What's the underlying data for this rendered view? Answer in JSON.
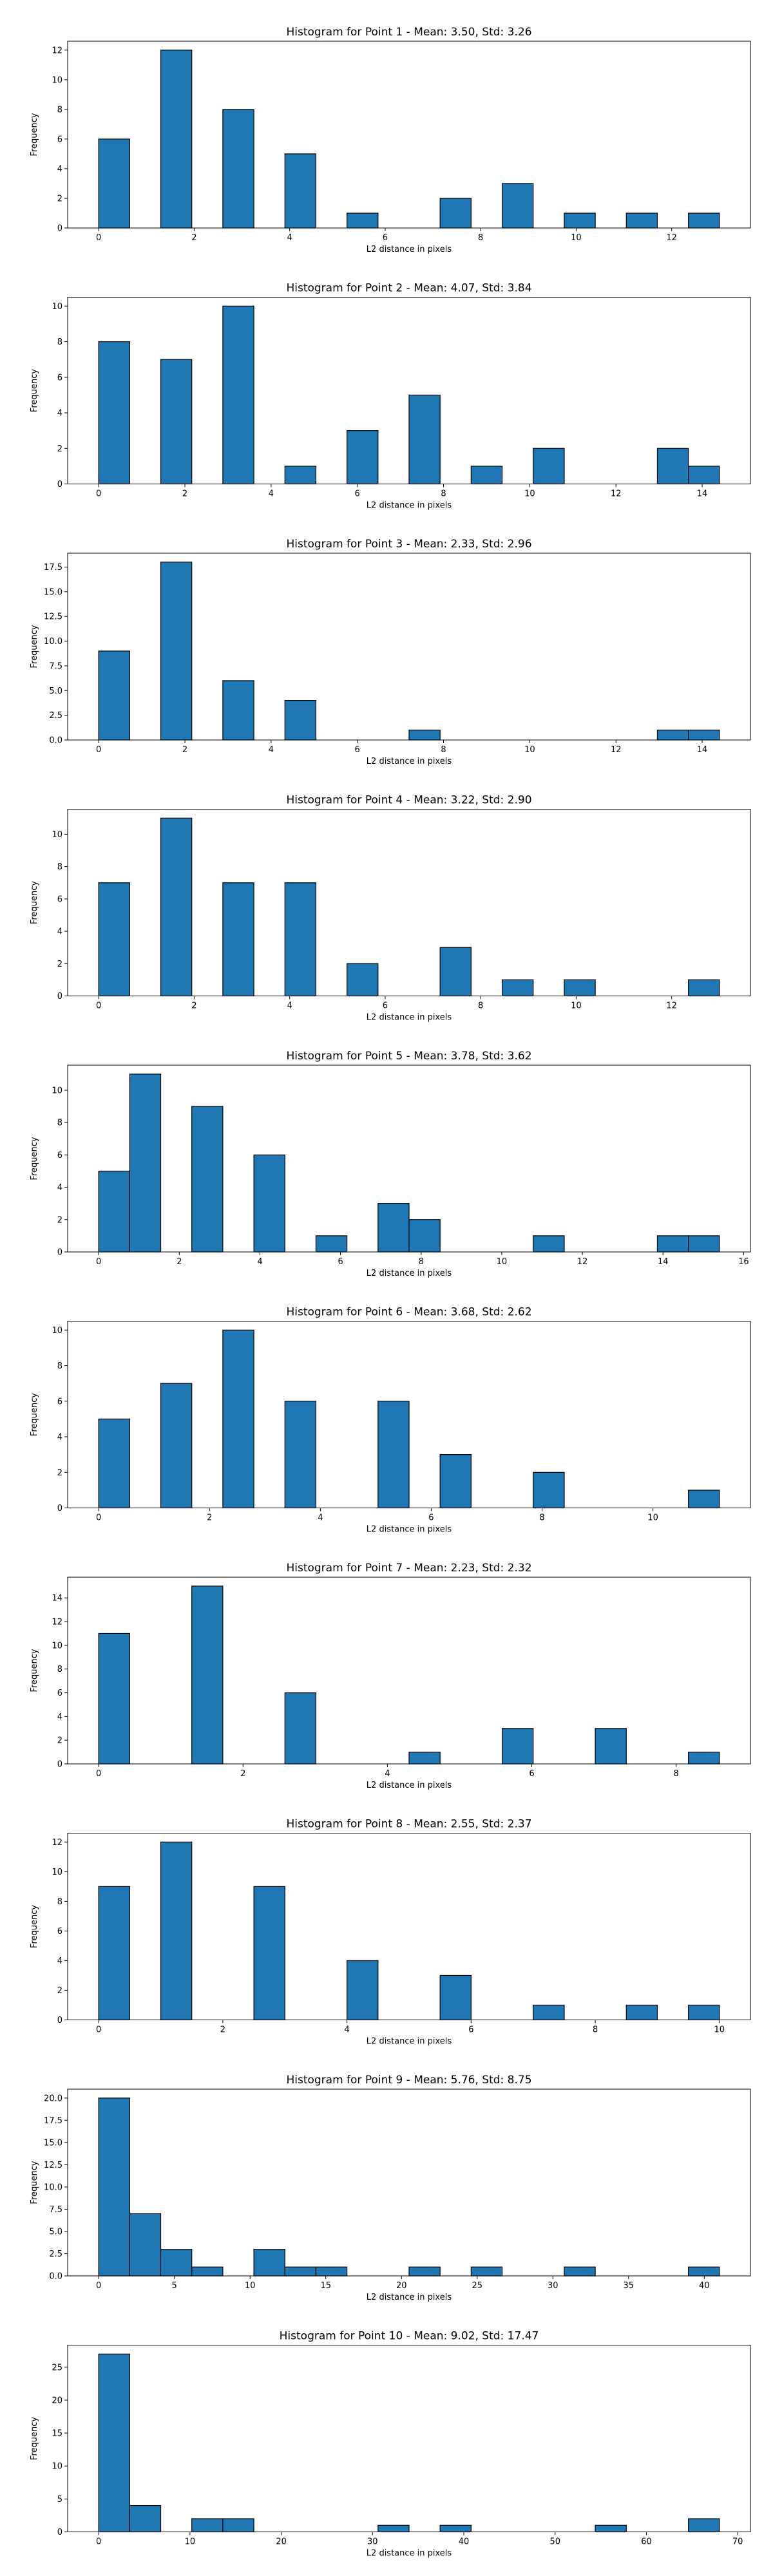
{
  "colors": {
    "bar_fill": "#1f77b4",
    "bar_edge": "#000000",
    "axes": "#000000"
  },
  "chart_data": [
    {
      "type": "bar",
      "title": "Histogram for Point 1 - Mean: 3.50, Std: 3.26",
      "xlabel": "L2 distance in pixels",
      "ylabel": "Frequency",
      "xlim": [
        -0.65,
        13.65
      ],
      "ylim": [
        0,
        12.6
      ],
      "xticks": [
        0,
        2,
        4,
        6,
        8,
        10,
        12
      ],
      "xtick_labels": [
        "0",
        "2",
        "4",
        "6",
        "8",
        "10",
        "12"
      ],
      "yticks": [
        0,
        2,
        4,
        6,
        8,
        10,
        12
      ],
      "ytick_labels": [
        "0",
        "2",
        "4",
        "6",
        "8",
        "10",
        "12"
      ],
      "grid": false,
      "bins": [
        {
          "x0": 0.0,
          "x1": 0.65,
          "value": 6
        },
        {
          "x0": 1.3,
          "x1": 1.95,
          "value": 12
        },
        {
          "x0": 2.6,
          "x1": 3.25,
          "value": 8
        },
        {
          "x0": 3.9,
          "x1": 4.55,
          "value": 5
        },
        {
          "x0": 5.2,
          "x1": 5.85,
          "value": 1
        },
        {
          "x0": 7.15,
          "x1": 7.8,
          "value": 2
        },
        {
          "x0": 8.45,
          "x1": 9.1,
          "value": 3
        },
        {
          "x0": 9.75,
          "x1": 10.4,
          "value": 1
        },
        {
          "x0": 11.05,
          "x1": 11.7,
          "value": 1
        },
        {
          "x0": 12.35,
          "x1": 13.0,
          "value": 1
        }
      ]
    },
    {
      "type": "bar",
      "title": "Histogram for Point 2 - Mean: 4.07, Std: 3.84",
      "xlabel": "L2 distance in pixels",
      "ylabel": "Frequency",
      "xlim": [
        -0.72,
        15.12
      ],
      "ylim": [
        0,
        10.5
      ],
      "xticks": [
        0,
        2,
        4,
        6,
        8,
        10,
        12,
        14
      ],
      "xtick_labels": [
        "0",
        "2",
        "4",
        "6",
        "8",
        "10",
        "12",
        "14"
      ],
      "yticks": [
        0,
        2,
        4,
        6,
        8,
        10
      ],
      "ytick_labels": [
        "0",
        "2",
        "4",
        "6",
        "8",
        "10"
      ],
      "grid": false,
      "bins": [
        {
          "x0": 0.0,
          "x1": 0.72,
          "value": 8
        },
        {
          "x0": 1.44,
          "x1": 2.16,
          "value": 7
        },
        {
          "x0": 2.88,
          "x1": 3.6,
          "value": 10
        },
        {
          "x0": 4.32,
          "x1": 5.04,
          "value": 1
        },
        {
          "x0": 5.76,
          "x1": 6.48,
          "value": 3
        },
        {
          "x0": 7.2,
          "x1": 7.92,
          "value": 5
        },
        {
          "x0": 8.64,
          "x1": 9.36,
          "value": 1
        },
        {
          "x0": 10.08,
          "x1": 10.8,
          "value": 2
        },
        {
          "x0": 12.96,
          "x1": 13.68,
          "value": 2
        },
        {
          "x0": 13.68,
          "x1": 14.4,
          "value": 1
        }
      ]
    },
    {
      "type": "bar",
      "title": "Histogram for Point 3 - Mean: 2.33, Std: 2.96",
      "xlabel": "L2 distance in pixels",
      "ylabel": "Frequency",
      "xlim": [
        -0.72,
        15.12
      ],
      "ylim": [
        0,
        18.9
      ],
      "xticks": [
        0,
        2,
        4,
        6,
        8,
        10,
        12,
        14
      ],
      "xtick_labels": [
        "0",
        "2",
        "4",
        "6",
        "8",
        "10",
        "12",
        "14"
      ],
      "yticks": [
        0,
        2.5,
        5,
        7.5,
        10,
        12.5,
        15,
        17.5
      ],
      "ytick_labels": [
        "0.0",
        "2.5",
        "5.0",
        "7.5",
        "10.0",
        "12.5",
        "15.0",
        "17.5"
      ],
      "grid": false,
      "bins": [
        {
          "x0": 0.0,
          "x1": 0.72,
          "value": 9
        },
        {
          "x0": 1.44,
          "x1": 2.16,
          "value": 18
        },
        {
          "x0": 2.88,
          "x1": 3.6,
          "value": 6
        },
        {
          "x0": 4.32,
          "x1": 5.04,
          "value": 4
        },
        {
          "x0": 7.2,
          "x1": 7.92,
          "value": 1
        },
        {
          "x0": 12.96,
          "x1": 13.68,
          "value": 1
        },
        {
          "x0": 13.68,
          "x1": 14.4,
          "value": 1
        }
      ]
    },
    {
      "type": "bar",
      "title": "Histogram for Point 4 - Mean: 3.22, Std: 2.90",
      "xlabel": "L2 distance in pixels",
      "ylabel": "Frequency",
      "xlim": [
        -0.65,
        13.65
      ],
      "ylim": [
        0,
        11.55
      ],
      "xticks": [
        0,
        2,
        4,
        6,
        8,
        10,
        12
      ],
      "xtick_labels": [
        "0",
        "2",
        "4",
        "6",
        "8",
        "10",
        "12"
      ],
      "yticks": [
        0,
        2,
        4,
        6,
        8,
        10
      ],
      "ytick_labels": [
        "0",
        "2",
        "4",
        "6",
        "8",
        "10"
      ],
      "grid": false,
      "bins": [
        {
          "x0": 0.0,
          "x1": 0.65,
          "value": 7
        },
        {
          "x0": 1.3,
          "x1": 1.95,
          "value": 11
        },
        {
          "x0": 2.6,
          "x1": 3.25,
          "value": 7
        },
        {
          "x0": 3.9,
          "x1": 4.55,
          "value": 7
        },
        {
          "x0": 5.2,
          "x1": 5.85,
          "value": 2
        },
        {
          "x0": 7.15,
          "x1": 7.8,
          "value": 3
        },
        {
          "x0": 8.45,
          "x1": 9.1,
          "value": 1
        },
        {
          "x0": 9.75,
          "x1": 10.4,
          "value": 1
        },
        {
          "x0": 12.35,
          "x1": 13.0,
          "value": 1
        }
      ]
    },
    {
      "type": "bar",
      "title": "Histogram for Point 5 - Mean: 3.78, Std: 3.62",
      "xlabel": "L2 distance in pixels",
      "ylabel": "Frequency",
      "xlim": [
        -0.77,
        16.17
      ],
      "ylim": [
        0,
        11.55
      ],
      "xticks": [
        0,
        2,
        4,
        6,
        8,
        10,
        12,
        14,
        16
      ],
      "xtick_labels": [
        "0",
        "2",
        "4",
        "6",
        "8",
        "10",
        "12",
        "14",
        "16"
      ],
      "yticks": [
        0,
        2,
        4,
        6,
        8,
        10
      ],
      "ytick_labels": [
        "0",
        "2",
        "4",
        "6",
        "8",
        "10"
      ],
      "grid": false,
      "bins": [
        {
          "x0": 0.0,
          "x1": 0.77,
          "value": 5
        },
        {
          "x0": 0.77,
          "x1": 1.54,
          "value": 11
        },
        {
          "x0": 2.31,
          "x1": 3.08,
          "value": 9
        },
        {
          "x0": 3.85,
          "x1": 4.62,
          "value": 6
        },
        {
          "x0": 5.39,
          "x1": 6.16,
          "value": 1
        },
        {
          "x0": 6.93,
          "x1": 7.7,
          "value": 3
        },
        {
          "x0": 7.7,
          "x1": 8.47,
          "value": 2
        },
        {
          "x0": 10.78,
          "x1": 11.55,
          "value": 1
        },
        {
          "x0": 13.86,
          "x1": 14.63,
          "value": 1
        },
        {
          "x0": 14.63,
          "x1": 15.4,
          "value": 1
        }
      ]
    },
    {
      "type": "bar",
      "title": "Histogram for Point 6 - Mean: 3.68, Std: 2.62",
      "xlabel": "L2 distance in pixels",
      "ylabel": "Frequency",
      "xlim": [
        -0.56,
        11.76
      ],
      "ylim": [
        0,
        10.5
      ],
      "xticks": [
        0,
        2,
        4,
        6,
        8,
        10
      ],
      "xtick_labels": [
        "0",
        "2",
        "4",
        "6",
        "8",
        "10"
      ],
      "yticks": [
        0,
        2,
        4,
        6,
        8,
        10
      ],
      "ytick_labels": [
        "0",
        "2",
        "4",
        "6",
        "8",
        "10"
      ],
      "grid": false,
      "bins": [
        {
          "x0": 0.0,
          "x1": 0.56,
          "value": 5
        },
        {
          "x0": 1.12,
          "x1": 1.68,
          "value": 7
        },
        {
          "x0": 2.24,
          "x1": 2.8,
          "value": 10
        },
        {
          "x0": 3.36,
          "x1": 3.92,
          "value": 6
        },
        {
          "x0": 5.04,
          "x1": 5.6,
          "value": 6
        },
        {
          "x0": 6.16,
          "x1": 6.72,
          "value": 3
        },
        {
          "x0": 7.84,
          "x1": 8.4,
          "value": 2
        },
        {
          "x0": 10.64,
          "x1": 11.2,
          "value": 1
        }
      ]
    },
    {
      "type": "bar",
      "title": "Histogram for Point 7 - Mean: 2.23, Std: 2.32",
      "xlabel": "L2 distance in pixels",
      "ylabel": "Frequency",
      "xlim": [
        -0.43,
        9.03
      ],
      "ylim": [
        0,
        15.75
      ],
      "xticks": [
        0,
        2,
        4,
        6,
        8
      ],
      "xtick_labels": [
        "0",
        "2",
        "4",
        "6",
        "8"
      ],
      "yticks": [
        0,
        2,
        4,
        6,
        8,
        10,
        12,
        14
      ],
      "ytick_labels": [
        "0",
        "2",
        "4",
        "6",
        "8",
        "10",
        "12",
        "14"
      ],
      "grid": false,
      "bins": [
        {
          "x0": 0.0,
          "x1": 0.43,
          "value": 11
        },
        {
          "x0": 1.29,
          "x1": 1.72,
          "value": 15
        },
        {
          "x0": 2.58,
          "x1": 3.01,
          "value": 6
        },
        {
          "x0": 4.3,
          "x1": 4.73,
          "value": 1
        },
        {
          "x0": 5.59,
          "x1": 6.02,
          "value": 3
        },
        {
          "x0": 6.88,
          "x1": 7.31,
          "value": 3
        },
        {
          "x0": 8.17,
          "x1": 8.6,
          "value": 1
        }
      ]
    },
    {
      "type": "bar",
      "title": "Histogram for Point 8 - Mean: 2.55, Std: 2.37",
      "xlabel": "L2 distance in pixels",
      "ylabel": "Frequency",
      "xlim": [
        -0.5,
        10.5
      ],
      "ylim": [
        0,
        12.6
      ],
      "xticks": [
        0,
        2,
        4,
        6,
        8,
        10
      ],
      "xtick_labels": [
        "0",
        "2",
        "4",
        "6",
        "8",
        "10"
      ],
      "yticks": [
        0,
        2,
        4,
        6,
        8,
        10,
        12
      ],
      "ytick_labels": [
        "0",
        "2",
        "4",
        "6",
        "8",
        "10",
        "12"
      ],
      "grid": false,
      "bins": [
        {
          "x0": 0.0,
          "x1": 0.5,
          "value": 9
        },
        {
          "x0": 1.0,
          "x1": 1.5,
          "value": 12
        },
        {
          "x0": 2.5,
          "x1": 3.0,
          "value": 9
        },
        {
          "x0": 4.0,
          "x1": 4.5,
          "value": 4
        },
        {
          "x0": 5.5,
          "x1": 6.0,
          "value": 3
        },
        {
          "x0": 7.0,
          "x1": 7.5,
          "value": 1
        },
        {
          "x0": 8.5,
          "x1": 9.0,
          "value": 1
        },
        {
          "x0": 9.5,
          "x1": 10.0,
          "value": 1
        }
      ]
    },
    {
      "type": "bar",
      "title": "Histogram for Point 9 - Mean: 5.76, Std: 8.75",
      "xlabel": "L2 distance in pixels",
      "ylabel": "Frequency",
      "xlim": [
        -2.05,
        43.05
      ],
      "ylim": [
        0,
        21.0
      ],
      "xticks": [
        0,
        5,
        10,
        15,
        20,
        25,
        30,
        35,
        40
      ],
      "xtick_labels": [
        "0",
        "5",
        "10",
        "15",
        "20",
        "25",
        "30",
        "35",
        "40"
      ],
      "yticks": [
        0,
        2.5,
        5,
        7.5,
        10,
        12.5,
        15,
        17.5,
        20
      ],
      "ytick_labels": [
        "0.0",
        "2.5",
        "5.0",
        "7.5",
        "10.0",
        "12.5",
        "15.0",
        "17.5",
        "20.0"
      ],
      "grid": false,
      "bins": [
        {
          "x0": 0.0,
          "x1": 2.05,
          "value": 20
        },
        {
          "x0": 2.05,
          "x1": 4.1,
          "value": 7
        },
        {
          "x0": 4.1,
          "x1": 6.15,
          "value": 3
        },
        {
          "x0": 6.15,
          "x1": 8.2,
          "value": 1
        },
        {
          "x0": 10.25,
          "x1": 12.3,
          "value": 3
        },
        {
          "x0": 12.3,
          "x1": 14.35,
          "value": 1
        },
        {
          "x0": 14.35,
          "x1": 16.4,
          "value": 1
        },
        {
          "x0": 20.5,
          "x1": 22.55,
          "value": 1
        },
        {
          "x0": 24.6,
          "x1": 26.65,
          "value": 1
        },
        {
          "x0": 30.75,
          "x1": 32.8,
          "value": 1
        },
        {
          "x0": 38.95,
          "x1": 41.0,
          "value": 1
        }
      ]
    },
    {
      "type": "bar",
      "title": "Histogram for Point 10 - Mean: 9.02, Std: 17.47",
      "xlabel": "L2 distance in pixels",
      "ylabel": "Frequency",
      "xlim": [
        -3.4,
        71.4
      ],
      "ylim": [
        0,
        28.35
      ],
      "xticks": [
        0,
        10,
        20,
        30,
        40,
        50,
        60,
        70
      ],
      "xtick_labels": [
        "0",
        "10",
        "20",
        "30",
        "40",
        "50",
        "60",
        "70"
      ],
      "yticks": [
        0,
        5,
        10,
        15,
        20,
        25
      ],
      "ytick_labels": [
        "0",
        "5",
        "10",
        "15",
        "20",
        "25"
      ],
      "grid": false,
      "bins": [
        {
          "x0": 0.0,
          "x1": 3.4,
          "value": 27
        },
        {
          "x0": 3.4,
          "x1": 6.8,
          "value": 4
        },
        {
          "x0": 10.2,
          "x1": 13.6,
          "value": 2
        },
        {
          "x0": 13.6,
          "x1": 17.0,
          "value": 2
        },
        {
          "x0": 30.6,
          "x1": 34.0,
          "value": 1
        },
        {
          "x0": 37.4,
          "x1": 40.8,
          "value": 1
        },
        {
          "x0": 54.4,
          "x1": 57.8,
          "value": 1
        },
        {
          "x0": 64.6,
          "x1": 68.0,
          "value": 2
        }
      ]
    }
  ]
}
